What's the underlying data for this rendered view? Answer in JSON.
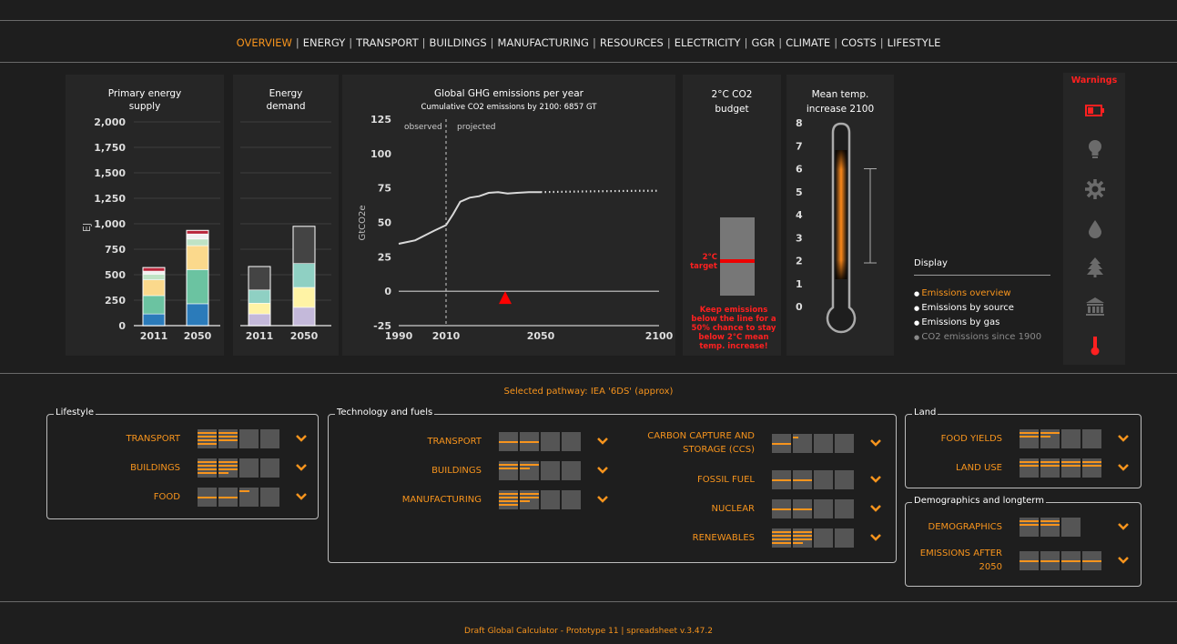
{
  "nav": {
    "items": [
      {
        "label": "OVERVIEW",
        "active": true
      },
      {
        "label": "ENERGY"
      },
      {
        "label": "TRANSPORT"
      },
      {
        "label": "BUILDINGS"
      },
      {
        "label": "MANUFACTURING"
      },
      {
        "label": "RESOURCES"
      },
      {
        "label": "ELECTRICITY"
      },
      {
        "label": "GGR"
      },
      {
        "label": "CLIMATE"
      },
      {
        "label": "COSTS"
      },
      {
        "label": "LIFESTYLE"
      }
    ],
    "separator": "|"
  },
  "supply": {
    "title": "Primary energy",
    "subtitle": "supply",
    "ylabel": "EJ"
  },
  "demand": {
    "title": "Energy",
    "subtitle": "demand"
  },
  "ghg": {
    "title": "Global GHG emissions per year",
    "subtitle": "Cumulative CO2 emissions by 2100: 6857 GT",
    "observed": "observed",
    "projected": "projected"
  },
  "budget": {
    "title": "2°C CO2",
    "subtitle": "budget",
    "target": "2°C target",
    "note": "Keep emissions below the line for a 50% chance to stay below 2°C mean temp. increase!"
  },
  "temp": {
    "title": "Mean temp.",
    "subtitle": "increase 2100",
    "ticks": [
      "8",
      "7",
      "6",
      "5",
      "4",
      "3",
      "2",
      "1",
      "0"
    ],
    "range_low": 1.9,
    "range_high": 6
  },
  "warnings": {
    "title": "Warnings",
    "icons": [
      "battery-icon",
      "lightbulb-icon",
      "gear-icon",
      "water-drop-icon",
      "tree-icon",
      "bank-icon",
      "thermometer-icon"
    ]
  },
  "display": {
    "title": "Display",
    "options": [
      {
        "label": "Emissions overview",
        "state": "selected"
      },
      {
        "label": "Emissions by source",
        "state": "normal"
      },
      {
        "label": "Emissions by gas",
        "state": "normal"
      },
      {
        "label": "CO2 emissions since 1900",
        "state": "dim"
      }
    ]
  },
  "pathway": "Selected pathway: IEA '6DS' (approx)",
  "lifestyle": {
    "title": "Lifestyle",
    "levers": [
      {
        "label": "TRANSPORT",
        "levels": [
          4,
          3,
          0,
          0
        ]
      },
      {
        "label": "BUILDINGS",
        "levels": [
          4,
          3.5,
          0,
          0
        ]
      },
      {
        "label": "FOOD",
        "levels": [
          1,
          1,
          0.5,
          0
        ]
      }
    ]
  },
  "tech": {
    "title": "Technology and fuels",
    "left": [
      {
        "label": "TRANSPORT",
        "levels": [
          1,
          1,
          0,
          0
        ]
      },
      {
        "label": "BUILDINGS",
        "levels": [
          2,
          1.5,
          0,
          0
        ]
      },
      {
        "label": "MANUFACTURING",
        "levels": [
          4,
          2.5,
          0,
          0
        ]
      }
    ],
    "right": [
      {
        "label": "CARBON CAPTURE AND STORAGE (CCS)",
        "levels": [
          1,
          0.3,
          0,
          0
        ]
      },
      {
        "label": "FOSSIL FUEL",
        "levels": [
          1,
          1,
          0,
          0
        ]
      },
      {
        "label": "NUCLEAR",
        "levels": [
          1,
          1,
          0,
          0
        ]
      },
      {
        "label": "RENEWABLES",
        "levels": [
          4,
          3.5,
          0,
          0
        ]
      }
    ]
  },
  "land": {
    "title": "Land",
    "levers": [
      {
        "label": "FOOD YIELDS",
        "levels": [
          2,
          1.5,
          0,
          0
        ]
      },
      {
        "label": "LAND USE",
        "levels": [
          2,
          2,
          2,
          2
        ]
      }
    ]
  },
  "demo": {
    "title": "Demographics and longterm",
    "levers": [
      {
        "label": "DEMOGRAPHICS",
        "levels": [
          2,
          2,
          0
        ]
      },
      {
        "label": "EMISSIONS AFTER 2050",
        "levels": [
          1,
          1,
          1,
          1
        ]
      }
    ]
  },
  "footer": "Draft Global Calculator - Prototype 11 | spreadsheet v.3.47.2",
  "colors": {
    "accent": "#f7941d",
    "warning": "#ff2020",
    "bg": "#1e1e1e",
    "panel": "#262626"
  },
  "chart_data": [
    {
      "type": "bar",
      "stacked": true,
      "title": "Primary energy supply",
      "ylabel": "EJ",
      "categories": [
        "2011",
        "2050"
      ],
      "ylim": [
        0,
        2000
      ],
      "yticks": [
        0,
        250,
        500,
        750,
        1000,
        1250,
        1500,
        1750,
        2000
      ],
      "ytick_labels": [
        "0",
        "250",
        "500",
        "750",
        "1,000",
        "1,250",
        "1,500",
        "1,750",
        "2,000"
      ],
      "series": [
        {
          "color": "#2b7bba",
          "values": [
            115,
            215
          ]
        },
        {
          "color": "#6bc3a1",
          "values": [
            180,
            335
          ]
        },
        {
          "color": "#fbd98c",
          "values": [
            155,
            235
          ]
        },
        {
          "color": "#bfe3c5",
          "values": [
            55,
            65
          ]
        },
        {
          "color": "#f1f1f1",
          "values": [
            30,
            50
          ]
        },
        {
          "color": "#b8263a",
          "values": [
            35,
            35
          ]
        }
      ]
    },
    {
      "type": "bar",
      "stacked": true,
      "title": "Energy demand",
      "categories": [
        "2011",
        "2050"
      ],
      "ylim": [
        0,
        2000
      ],
      "series": [
        {
          "color": "#c4b9da",
          "values": [
            115,
            180
          ]
        },
        {
          "color": "#fff3a5",
          "values": [
            105,
            195
          ]
        },
        {
          "color": "#8fd0c3",
          "values": [
            130,
            235
          ]
        },
        {
          "color": "#444444",
          "values": [
            230,
            365
          ]
        }
      ]
    },
    {
      "type": "line",
      "title": "Global GHG emissions per year",
      "subtitle": "Cumulative CO2 emissions by 2100: 6857 GT",
      "ylabel": "GtCO2e",
      "ylim": [
        -25,
        125
      ],
      "yticks": [
        -25,
        0,
        25,
        50,
        75,
        100,
        125
      ],
      "xlim": [
        1990,
        2100
      ],
      "xticks": [
        1990,
        2010,
        2050,
        2100
      ],
      "observed_until": 2010,
      "series": [
        {
          "style": "solid",
          "x": [
            1990,
            1993,
            1997,
            2001,
            2005,
            2010,
            2013,
            2016,
            2020,
            2024,
            2028,
            2032,
            2036,
            2040,
            2045,
            2050
          ],
          "y": [
            34.5,
            35.5,
            37,
            40.5,
            44,
            48,
            56,
            65,
            68,
            69,
            71.5,
            72,
            71,
            71.5,
            72,
            72
          ]
        },
        {
          "style": "dotted",
          "x": [
            2050,
            2060,
            2070,
            2080,
            2090,
            2100
          ],
          "y": [
            72,
            72.3,
            72.5,
            72.7,
            72.9,
            73
          ]
        }
      ],
      "marker": {
        "x": 2035,
        "y": 0,
        "color": "#ff0000"
      }
    }
  ]
}
